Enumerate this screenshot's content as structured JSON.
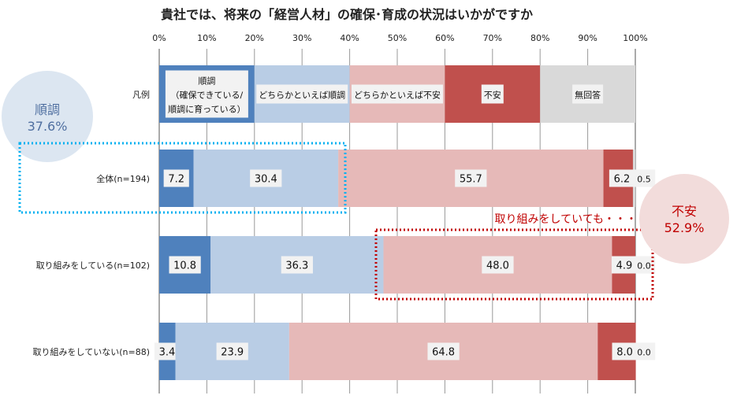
{
  "chart_data": {
    "type": "bar",
    "stacked": true,
    "orientation": "horizontal",
    "title": "貴社では、将来の「経営人材」の確保･育成の状況はいかがですか",
    "xlim": [
      0,
      100
    ],
    "xticks": [
      "0%",
      "10%",
      "20%",
      "30%",
      "40%",
      "50%",
      "60%",
      "70%",
      "80%",
      "90%",
      "100%"
    ],
    "grid": true,
    "legend_row": {
      "label": "凡例",
      "entries": [
        [
          "順調",
          "（確保できている/",
          "順調に育っている）"
        ],
        [
          "どちらかといえば順調"
        ],
        [
          "どちらかといえば不安"
        ],
        [
          "不安"
        ],
        [
          "無回答"
        ]
      ]
    },
    "series_colors": [
      "#4f81bd",
      "#b9cde5",
      "#e6b9b8",
      "#c0504d",
      "#d9d9d9"
    ],
    "categories": [
      "全体(n=194)",
      "取り組みをしている(n=102)",
      "取り組みをしていない(n=88)"
    ],
    "series": [
      {
        "name": "順調",
        "values": [
          7.2,
          10.8,
          3.4
        ]
      },
      {
        "name": "どちらかといえば順調",
        "values": [
          30.4,
          36.3,
          23.9
        ]
      },
      {
        "name": "どちらかといえば不安",
        "values": [
          55.7,
          48.0,
          64.8
        ]
      },
      {
        "name": "不安",
        "values": [
          6.2,
          4.9,
          8.0
        ]
      },
      {
        "name": "無回答",
        "values": [
          0.5,
          0.0,
          0.0
        ]
      }
    ],
    "value_labels": [
      [
        "7.2",
        "30.4",
        "55.7",
        "6.2",
        "0.5"
      ],
      [
        "10.8",
        "36.3",
        "48.0",
        "4.9",
        "0.0"
      ],
      [
        "3.4",
        "23.9",
        "64.8",
        "8.0",
        "0.0"
      ]
    ]
  },
  "annotations": {
    "left_bubble": {
      "label": "順調",
      "value": "37.6%",
      "color": "#dce6f1",
      "text_color": "#4f6fa0"
    },
    "right_bubble": {
      "label": "不安",
      "value": "52.9%",
      "color": "#f2dcdb",
      "text_color": "#c00000"
    },
    "callout": "取り組みをしていても・・・",
    "callout_color": "#c00000",
    "blue_box_color": "#00b0f0",
    "red_box_color": "#c00000"
  }
}
